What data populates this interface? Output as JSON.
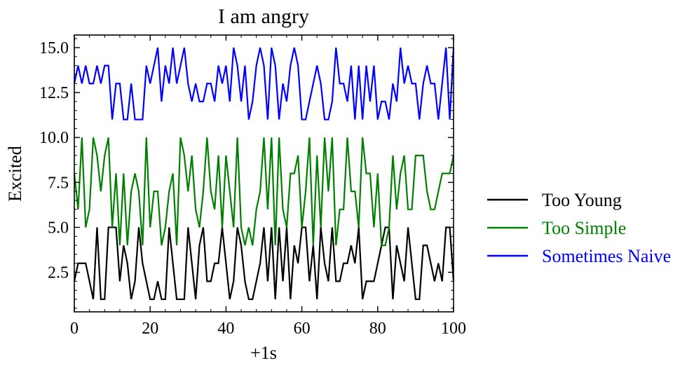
{
  "chart_data": {
    "type": "line",
    "title": "I am angry",
    "xlabel": "+1s",
    "ylabel": "Excited",
    "xlim": [
      0,
      100
    ],
    "ylim": [
      0.3,
      15.7
    ],
    "xticks": [
      0,
      20,
      40,
      60,
      80,
      100
    ],
    "xtick_labels": [
      "0",
      "20",
      "40",
      "60",
      "80",
      "100"
    ],
    "yticks": [
      2.5,
      5.0,
      7.5,
      10.0,
      12.5,
      15.0
    ],
    "ytick_labels": [
      "2.5",
      "5.0",
      "7.5",
      "10.0",
      "12.5",
      "15.0"
    ],
    "grid": false,
    "legend_position": "outside-right",
    "x": [
      0,
      1,
      2,
      3,
      4,
      5,
      6,
      7,
      8,
      9,
      10,
      11,
      12,
      13,
      14,
      15,
      16,
      17,
      18,
      19,
      20,
      21,
      22,
      23,
      24,
      25,
      26,
      27,
      28,
      29,
      30,
      31,
      32,
      33,
      34,
      35,
      36,
      37,
      38,
      39,
      40,
      41,
      42,
      43,
      44,
      45,
      46,
      47,
      48,
      49,
      50,
      51,
      52,
      53,
      54,
      55,
      56,
      57,
      58,
      59,
      60,
      61,
      62,
      63,
      64,
      65,
      66,
      67,
      68,
      69,
      70,
      71,
      72,
      73,
      74,
      75,
      76,
      77,
      78,
      79,
      80,
      81,
      82,
      83,
      84,
      85,
      86,
      87,
      88,
      89,
      90,
      91,
      92,
      93,
      94,
      95,
      96,
      97,
      98,
      99,
      100
    ],
    "series": [
      {
        "name": "Too Young",
        "color": "#000000",
        "values": [
          2,
          3,
          3,
          3,
          2,
          1,
          5,
          1,
          1,
          5,
          5,
          5,
          2,
          4,
          3,
          1,
          2,
          5,
          3,
          2,
          1,
          1,
          2,
          1,
          1,
          5,
          3,
          1,
          1,
          1,
          5,
          3,
          1,
          4,
          5,
          2,
          2,
          3,
          3,
          5,
          3,
          1,
          2,
          5,
          4,
          2,
          1,
          1,
          2,
          3,
          5,
          2,
          5,
          1,
          5,
          2,
          5,
          1,
          4,
          3,
          5,
          5,
          2,
          4,
          1,
          5,
          3,
          2,
          5,
          2,
          2,
          3,
          3,
          4,
          3,
          5,
          1,
          2,
          2,
          2,
          3,
          4,
          5,
          5,
          1,
          4,
          3,
          2,
          5,
          3,
          1,
          1,
          4,
          4,
          3,
          2,
          3,
          2,
          5,
          5,
          2
        ]
      },
      {
        "name": "Too Simple",
        "color": "#008000",
        "values": [
          8,
          6,
          10,
          5,
          6,
          10,
          9,
          7,
          9,
          10,
          5,
          8,
          4,
          8,
          4,
          7,
          8,
          7,
          4,
          10,
          5,
          7,
          7,
          4,
          5,
          7,
          8,
          4,
          10,
          9,
          7,
          9,
          6,
          5,
          7,
          10,
          7,
          6,
          9,
          5,
          9,
          7,
          5,
          10,
          5,
          4,
          5,
          4,
          6,
          7,
          10,
          6,
          10,
          4,
          10,
          6,
          5,
          8,
          8,
          9,
          5,
          7,
          10,
          4,
          9,
          5,
          10,
          7,
          10,
          4,
          6,
          6,
          10,
          7,
          7,
          5,
          10,
          8,
          8,
          5,
          8,
          4,
          4,
          5,
          9,
          6,
          8,
          9,
          6,
          6,
          9,
          9,
          9,
          7,
          6,
          6,
          7,
          8,
          8,
          8,
          9
        ]
      },
      {
        "name": "Sometimes Naive",
        "color": "#0000ff",
        "values": [
          13,
          14,
          13,
          14,
          13,
          13,
          14,
          13,
          14,
          14,
          11,
          13,
          13,
          11,
          11,
          13,
          11,
          11,
          11,
          14,
          13,
          14,
          15,
          12,
          14,
          13,
          15,
          13,
          14,
          15,
          13,
          12,
          13,
          12,
          12,
          13,
          13,
          12,
          14,
          13,
          14,
          12,
          15,
          14,
          12,
          14,
          11,
          12,
          14,
          15,
          14,
          11,
          15,
          14,
          11,
          13,
          12,
          14,
          15,
          14,
          11,
          11,
          12,
          13,
          14,
          13,
          11,
          11,
          12,
          15,
          13,
          13,
          12,
          14,
          11,
          14,
          11,
          14,
          12,
          14,
          11,
          12,
          12,
          11,
          13,
          12,
          15,
          13,
          14,
          13,
          13,
          11,
          13,
          14,
          13,
          13,
          11,
          13,
          15,
          11,
          15
        ]
      }
    ]
  }
}
